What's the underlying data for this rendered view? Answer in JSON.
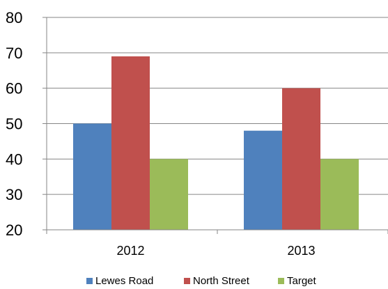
{
  "chart_data": {
    "type": "bar",
    "categories": [
      "2012",
      "2013"
    ],
    "series": [
      {
        "name": "Lewes Road",
        "values": [
          50,
          48
        ],
        "color": "#4f81bd"
      },
      {
        "name": "North Street",
        "values": [
          69,
          60
        ],
        "color": "#c0504d"
      },
      {
        "name": "Target",
        "values": [
          40,
          40
        ],
        "color": "#9bbb59"
      }
    ],
    "yticks": [
      "20",
      "30",
      "40",
      "50",
      "60",
      "70",
      "80"
    ],
    "ylim": [
      20,
      80
    ],
    "grid": true,
    "legend": "bottom"
  }
}
